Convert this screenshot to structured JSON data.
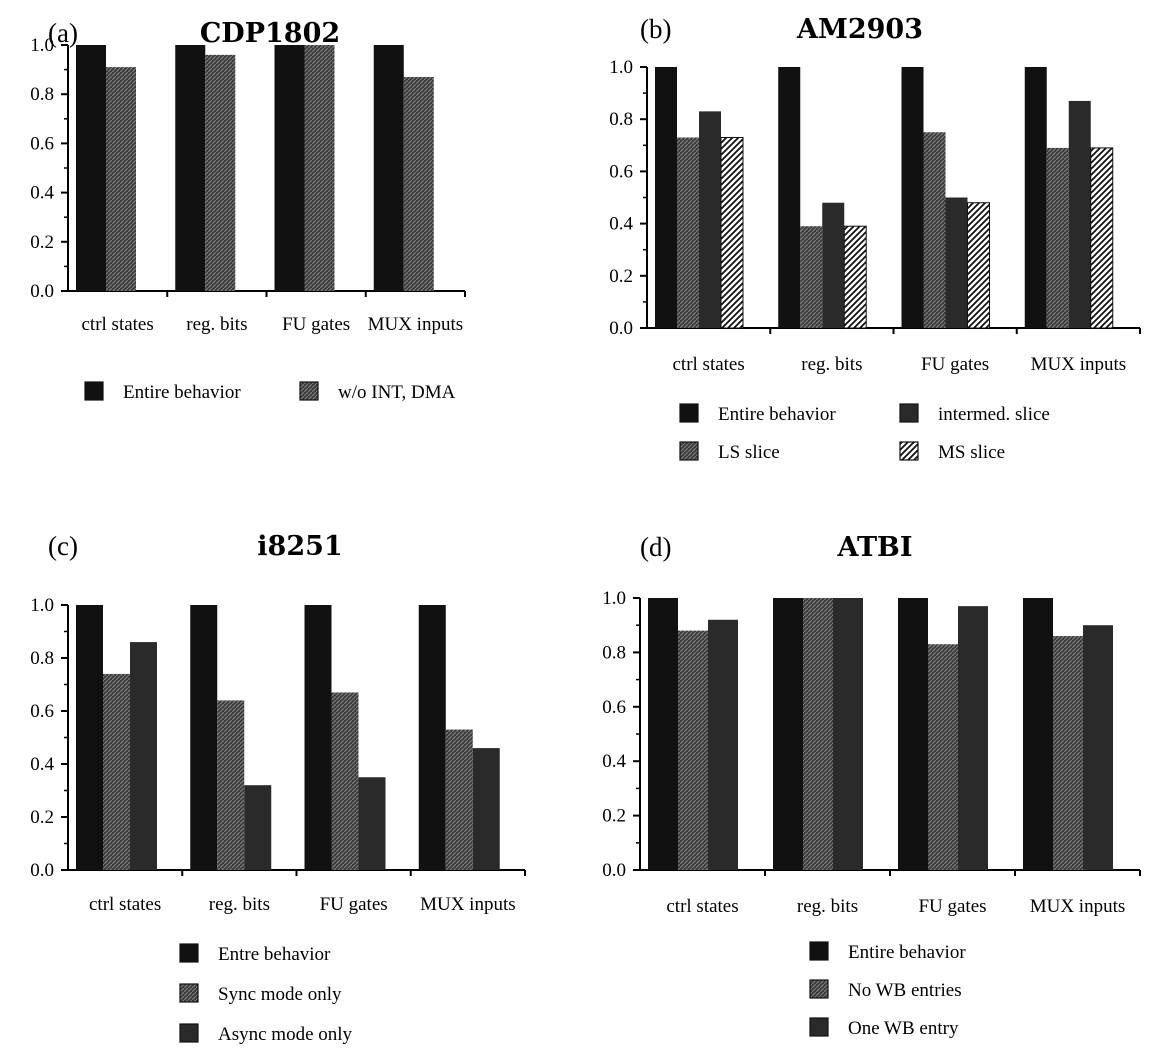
{
  "palette": {
    "solid": "#111111",
    "dark": "#2a2a2a",
    "hatch_bg": "#3c3c3c",
    "hatch_fg": "#7a7a7a",
    "diag_bg": "#ffffff",
    "diag_fg": "#111111"
  },
  "chart_data": [
    {
      "type": "bar",
      "panel_label": "(a)",
      "title": "CDP1802",
      "categories": [
        "ctrl states",
        "reg. bits",
        "FU gates",
        "MUX inputs"
      ],
      "ylim": [
        0,
        1.0
      ],
      "yticks": [
        "0.0",
        "0.2",
        "0.4",
        "0.6",
        "0.8",
        "1.0"
      ],
      "legend_columns": 2,
      "series": [
        {
          "name": "Entire behavior",
          "style": "solid",
          "values": [
            1.0,
            1.0,
            1.0,
            1.0
          ]
        },
        {
          "name": "w/o INT, DMA",
          "style": "hatch",
          "values": [
            0.91,
            0.96,
            1.0,
            0.87
          ]
        }
      ]
    },
    {
      "type": "bar",
      "panel_label": "(b)",
      "title": "AM2903",
      "categories": [
        "ctrl states",
        "reg. bits",
        "FU gates",
        "MUX inputs"
      ],
      "ylim": [
        0,
        1.0
      ],
      "yticks": [
        "0.0",
        "0.2",
        "0.4",
        "0.6",
        "0.8",
        "1.0"
      ],
      "legend_columns": 2,
      "series": [
        {
          "name": "Entire behavior",
          "style": "solid",
          "values": [
            1.0,
            1.0,
            1.0,
            1.0
          ]
        },
        {
          "name": "LS slice",
          "style": "hatch",
          "values": [
            0.73,
            0.39,
            0.75,
            0.69
          ]
        },
        {
          "name": "intermed. slice",
          "style": "dark",
          "values": [
            0.83,
            0.48,
            0.5,
            0.87
          ]
        },
        {
          "name": "MS slice",
          "style": "diag",
          "values": [
            0.73,
            0.39,
            0.48,
            0.69
          ]
        }
      ]
    },
    {
      "type": "bar",
      "panel_label": "(c)",
      "title": "i8251",
      "categories": [
        "ctrl states",
        "reg. bits",
        "FU gates",
        "MUX inputs"
      ],
      "ylim": [
        0,
        1.0
      ],
      "yticks": [
        "0.0",
        "0.2",
        "0.4",
        "0.6",
        "0.8",
        "1.0"
      ],
      "legend_columns": 1,
      "series": [
        {
          "name": "Entre behavior",
          "style": "solid",
          "values": [
            1.0,
            1.0,
            1.0,
            1.0
          ]
        },
        {
          "name": "Sync mode only",
          "style": "hatch",
          "values": [
            0.74,
            0.64,
            0.67,
            0.53
          ]
        },
        {
          "name": "Async mode only",
          "style": "dark",
          "values": [
            0.86,
            0.32,
            0.35,
            0.46
          ]
        }
      ]
    },
    {
      "type": "bar",
      "panel_label": "(d)",
      "title": "ATBI",
      "categories": [
        "ctrl states",
        "reg. bits",
        "FU gates",
        "MUX inputs"
      ],
      "ylim": [
        0,
        1.0
      ],
      "yticks": [
        "0.0",
        "0.2",
        "0.4",
        "0.6",
        "0.8",
        "1.0"
      ],
      "legend_columns": 1,
      "series": [
        {
          "name": "Entire behavior",
          "style": "solid",
          "values": [
            1.0,
            1.0,
            1.0,
            1.0
          ]
        },
        {
          "name": "No WB entries",
          "style": "hatch",
          "values": [
            0.88,
            1.0,
            0.83,
            0.86
          ]
        },
        {
          "name": "One WB entry",
          "style": "dark",
          "values": [
            0.92,
            1.0,
            0.97,
            0.9
          ]
        }
      ]
    }
  ]
}
